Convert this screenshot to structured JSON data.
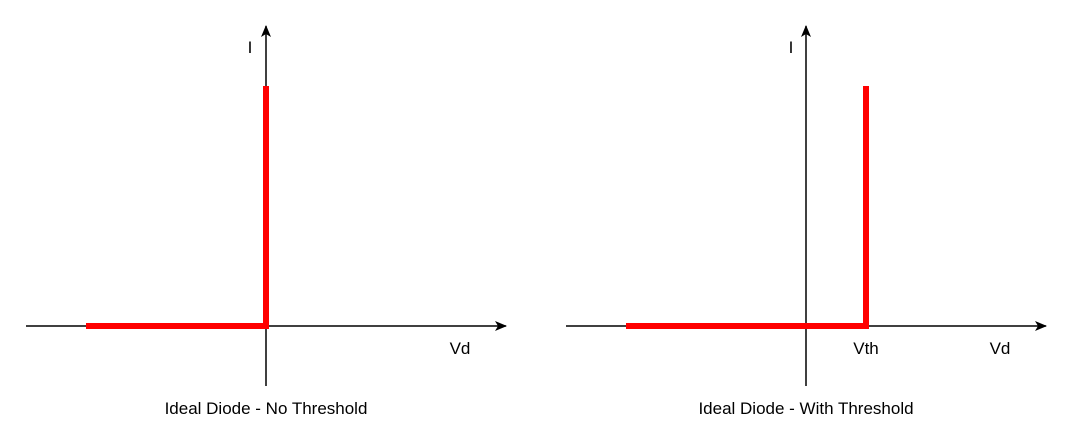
{
  "colors": {
    "axis": "#000000",
    "curve": "#ff0000",
    "background": "#ffffff"
  },
  "diagrams": [
    {
      "caption": "Ideal Diode - No Threshold",
      "y_axis_label": "I",
      "x_axis_label": "Vd"
    },
    {
      "caption": "Ideal Diode - With Threshold",
      "y_axis_label": "I",
      "x_axis_label": "Vd",
      "threshold_label": "Vth"
    }
  ]
}
